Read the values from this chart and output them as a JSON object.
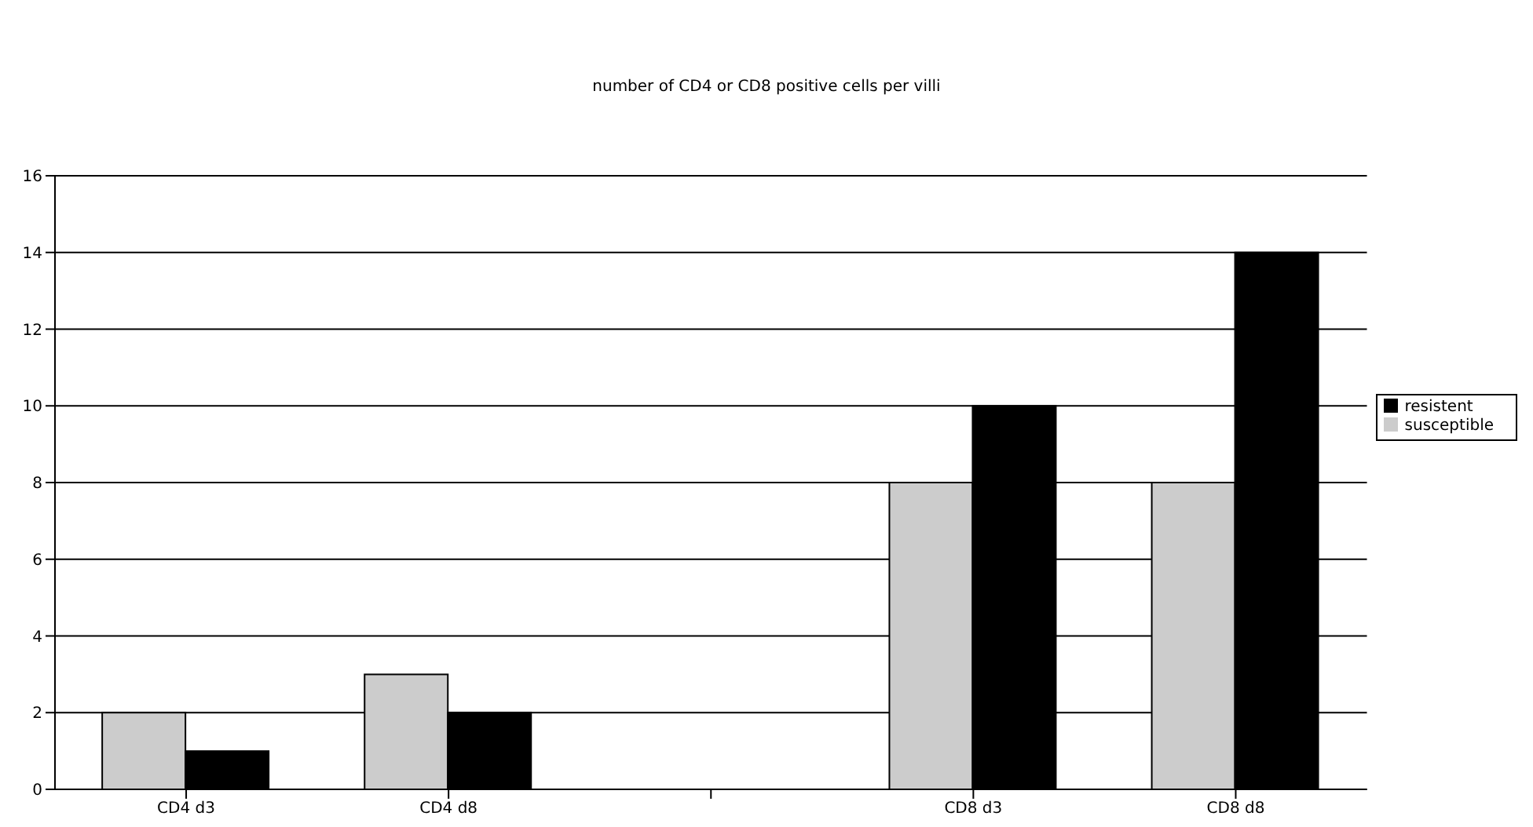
{
  "chart_data": {
    "type": "bar",
    "title": "number of CD4 or CD8 positive cells per villi",
    "categories": [
      "CD4 d3",
      "CD4 d8",
      null,
      "CD8 d3",
      "CD8 d8"
    ],
    "series": [
      {
        "name": "susceptible",
        "color": "#cccccc",
        "values": [
          2,
          3,
          null,
          8,
          8
        ]
      },
      {
        "name": "resistent",
        "color": "#000000",
        "values": [
          1,
          2,
          null,
          10,
          14
        ]
      }
    ],
    "ylim": [
      0,
      16
    ],
    "yticks": [
      0,
      2,
      4,
      6,
      8,
      10,
      12,
      14,
      16
    ],
    "grid": "y",
    "legend": "right"
  }
}
